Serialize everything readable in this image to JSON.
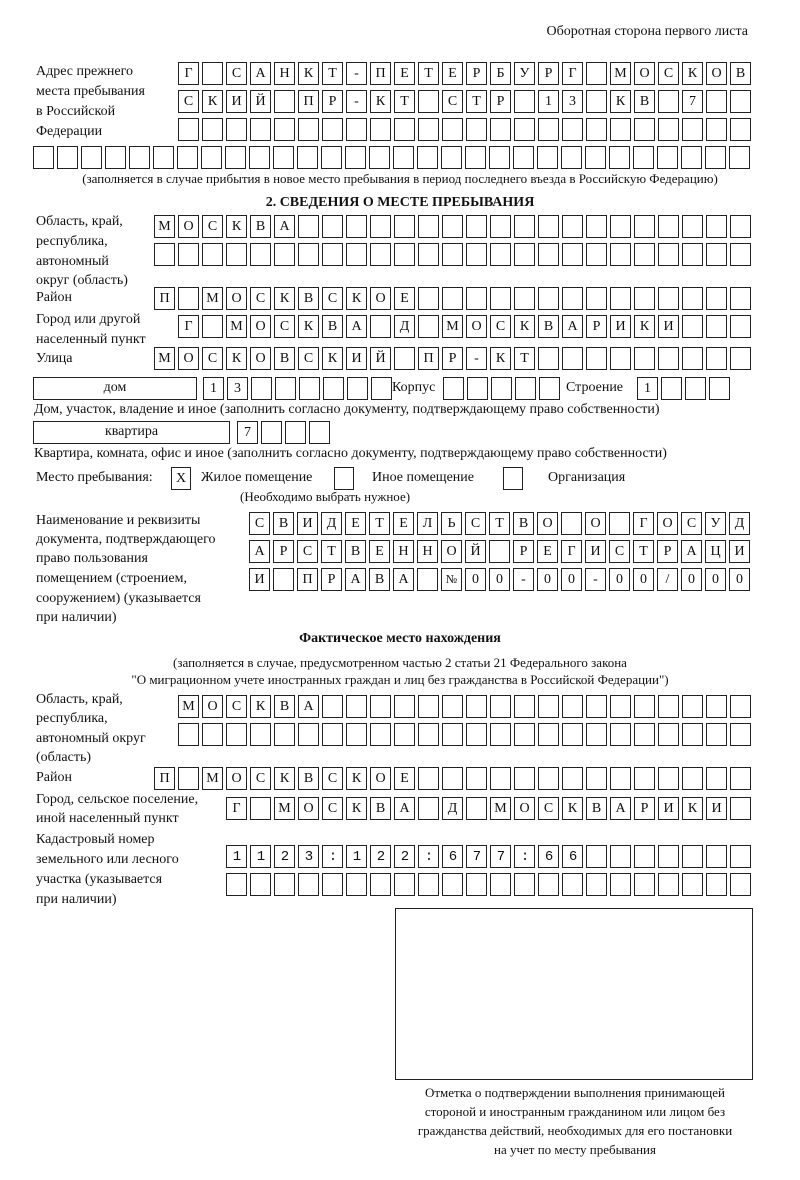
{
  "header": "Оборотная сторона первого листа",
  "prev_address": {
    "label": [
      "Адрес прежнего",
      "места пребывания",
      "в Российской",
      "Федерации"
    ],
    "rows": [
      "Г САНКТ-ПЕТЕРБУРГ МОСКОВ",
      "СКИЙ ПР-КТ СТР 13 КВ 7  ",
      "                        "
    ],
    "extra_row": "                              ",
    "note": "(заполняется в случае прибытия в новое место пребывания в период последнего въезда в Российскую Федерацию)"
  },
  "section2": {
    "title": "2. СВЕДЕНИЯ О МЕСТЕ ПРЕБЫВАНИЯ",
    "region": {
      "label": [
        "Область, край,",
        "республика,",
        "автономный",
        "округ (область)"
      ],
      "rows": [
        "МОСКВА                   ",
        "                         "
      ]
    },
    "district": {
      "label": "Район",
      "row": "П МОСКВСКОЕ              "
    },
    "city": {
      "label": [
        "Город или другой",
        "населенный пункт"
      ],
      "row": "Г МОСКВА Д МОСКВАРИКИ   "
    },
    "street": {
      "label": "Улица",
      "row": "МОСКОВСКИЙ ПР-КТ         "
    },
    "house": {
      "type": "дом",
      "number": "13      ",
      "building_label": "Корпус",
      "building": "     ",
      "structure_label": "Строение",
      "structure": "1   "
    },
    "house_note": "Дом, участок, владение и иное (заполнить согласно документу, подтверждающему право собственности)",
    "apartment": {
      "type": "квартира",
      "number": "7   "
    },
    "apartment_note": "Квартира, комната, офис и иное (заполнить согласно документу, подтверждающему право собственности)",
    "stay_place": {
      "label": "Место пребывания:",
      "options": [
        {
          "label": "Жилое помещение",
          "mark": "X"
        },
        {
          "label": "Иное помещение",
          "mark": ""
        },
        {
          "label": "Организация",
          "mark": ""
        }
      ],
      "hint": "(Необходимо выбрать нужное)"
    },
    "document": {
      "label": [
        "Наименование и реквизиты",
        "документа, подтверждающего",
        "право пользования",
        "помещением (строением,",
        "сооружением) (указывается",
        "при наличии)"
      ],
      "rows": [
        "СВИДЕТЕЛЬСТВО О ГОСУД",
        "АРСТВЕННОЙ РЕГИСТРАЦИ",
        "И ПРАВА №00-00-00/000"
      ]
    }
  },
  "actual": {
    "title": "Фактическое место нахождения",
    "note": [
      "(заполняется в случае, предусмотренном частью 2 статьи 21 Федерального закона",
      "\"О миграционном учете иностранных граждан и лиц без гражданства в Российской Федерации\")"
    ],
    "region": {
      "label": [
        "Область, край,",
        "республика,",
        "автономный округ",
        "(область)"
      ],
      "rows": [
        "МОСКВА                  ",
        "                        "
      ]
    },
    "district": {
      "label": "Район",
      "row": "П МОСКВСКОЕ              "
    },
    "city": {
      "label": [
        "Город, сельское поселение,",
        "иной населенный пункт"
      ],
      "row": "Г МОСКВА Д МОСКВАРИКИ "
    },
    "cadastre": {
      "label": [
        "Кадастровый номер",
        "земельного или лесного",
        "участка (указывается",
        "при наличии)"
      ],
      "rows": [
        "1123:122:677:66       ",
        "                      "
      ]
    }
  },
  "confirmation": {
    "caption": [
      "Отметка о подтверждении выполнения принимающей",
      "стороной и иностранным гражданином или лицом без",
      "гражданства действий, необходимых для его постановки",
      "на учет по месту пребывания"
    ]
  }
}
